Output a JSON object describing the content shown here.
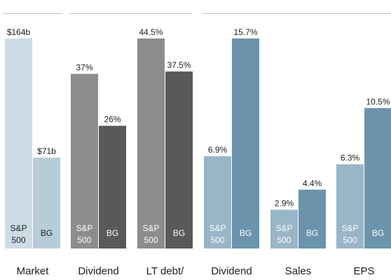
{
  "chart_data": {
    "type": "bar",
    "groups": [
      {
        "label": "Market",
        "bars": [
          {
            "series": [
              "S&P",
              "500"
            ],
            "value": 164,
            "display": "$164b",
            "color": "#ccdce5"
          },
          {
            "series": [
              "BG"
            ],
            "value": 71,
            "display": "$71b",
            "color": "#b5ccd9"
          }
        ]
      },
      {
        "label": "Dividend",
        "bars": [
          {
            "series": [
              "S&P",
              "500"
            ],
            "value": 37,
            "display": "37%",
            "color": "#8c8c8c"
          },
          {
            "series": [
              "BG"
            ],
            "value": 26,
            "display": "26%",
            "color": "#595959"
          }
        ]
      },
      {
        "label": "LT debt/",
        "bars": [
          {
            "series": [
              "S&P",
              "500"
            ],
            "value": 44.5,
            "display": "44.5%",
            "color": "#8c8c8c"
          },
          {
            "series": [
              "BG"
            ],
            "value": 37.5,
            "display": "37.5%",
            "color": "#595959"
          }
        ]
      },
      {
        "label": "Dividend",
        "bars": [
          {
            "series": [
              "S&P",
              "500"
            ],
            "value": 6.9,
            "display": "6.9%",
            "color": "#99b5c8"
          },
          {
            "series": [
              "BG"
            ],
            "value": 15.7,
            "display": "15.7%",
            "color": "#6b94ac"
          }
        ]
      },
      {
        "label": "Sales",
        "bars": [
          {
            "series": [
              "S&P",
              "500"
            ],
            "value": 2.9,
            "display": "2.9%",
            "color": "#99b5c8"
          },
          {
            "series": [
              "BG"
            ],
            "value": 4.4,
            "display": "4.4%",
            "color": "#6b94ac"
          }
        ]
      },
      {
        "label": "EPS",
        "bars": [
          {
            "series": [
              "S&P",
              "500"
            ],
            "value": 6.3,
            "display": "6.3%",
            "color": "#99b5c8"
          },
          {
            "series": [
              "BG"
            ],
            "value": 10.5,
            "display": "10.5%",
            "color": "#6b94ac"
          }
        ]
      }
    ]
  }
}
